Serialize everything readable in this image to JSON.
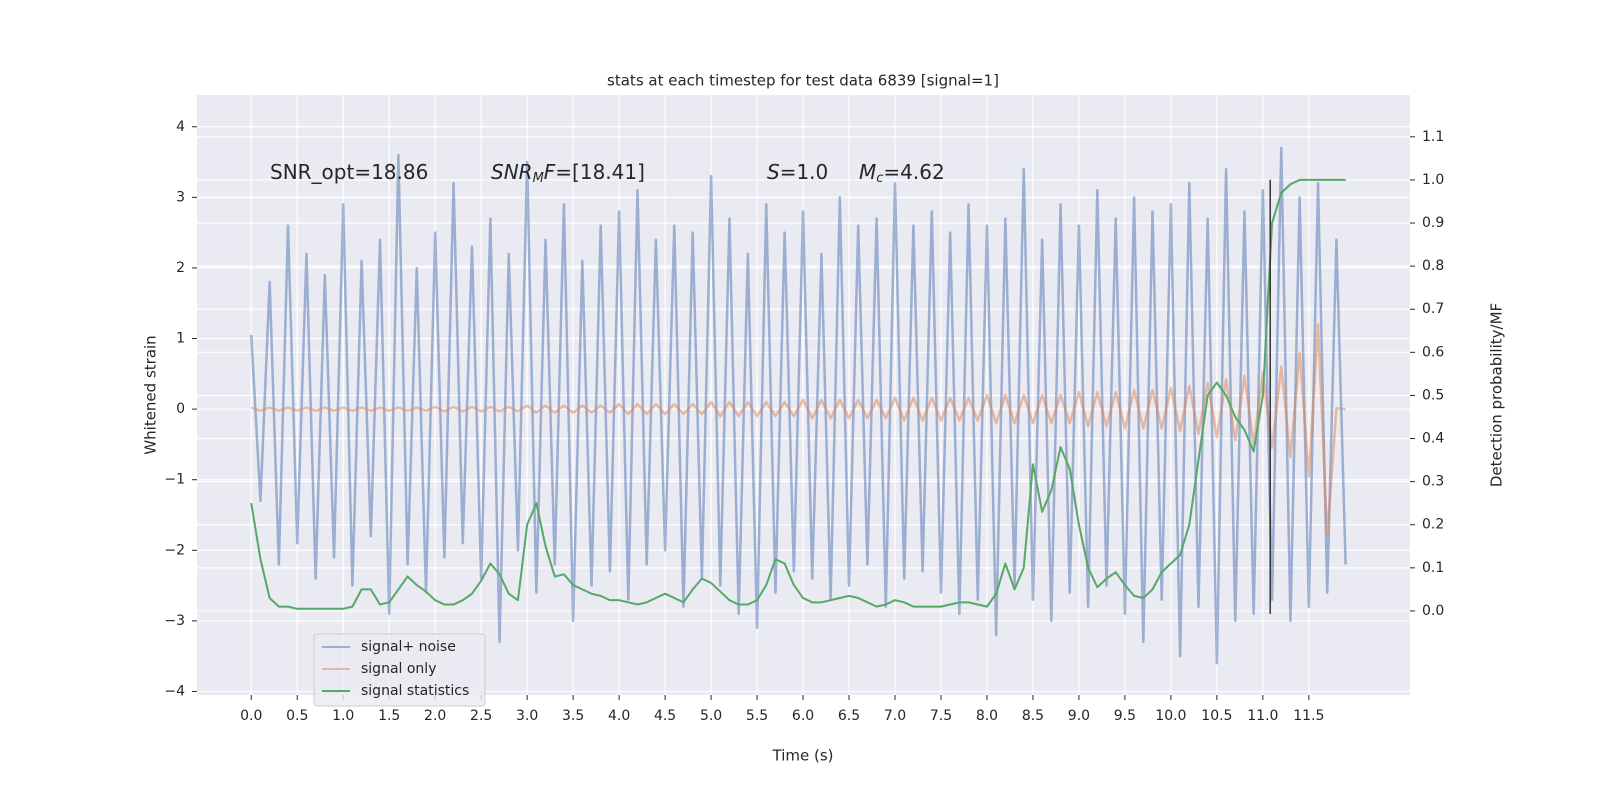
{
  "chart_data": {
    "type": "line",
    "title": "stats at each timestep for test data 6839 [signal=1]",
    "xlabel": "Time (s)",
    "ylabel": "Whitened strain",
    "y2label": "Detection probability/MF",
    "x": [
      0,
      0.1,
      0.2,
      0.3,
      0.4,
      0.5,
      0.6,
      0.7,
      0.8,
      0.9,
      1,
      1.1,
      1.2,
      1.3,
      1.4,
      1.5,
      1.6,
      1.7,
      1.8,
      1.9,
      2,
      2.1,
      2.2,
      2.3,
      2.4,
      2.5,
      2.6,
      2.7,
      2.8,
      2.9,
      3,
      3.1,
      3.2,
      3.3,
      3.4,
      3.5,
      3.6,
      3.7,
      3.8,
      3.9,
      4,
      4.1,
      4.2,
      4.3,
      4.4,
      4.5,
      4.6,
      4.7,
      4.8,
      4.9,
      5,
      5.1,
      5.2,
      5.3,
      5.4,
      5.5,
      5.6,
      5.7,
      5.8,
      5.9,
      6,
      6.1,
      6.2,
      6.3,
      6.4,
      6.5,
      6.6,
      6.7,
      6.8,
      6.9,
      7,
      7.1,
      7.2,
      7.3,
      7.4,
      7.5,
      7.6,
      7.7,
      7.8,
      7.9,
      8,
      8.1,
      8.2,
      8.3,
      8.4,
      8.5,
      8.6,
      8.7,
      8.8,
      8.9,
      9,
      9.1,
      9.2,
      9.3,
      9.4,
      9.5,
      9.6,
      9.7,
      9.8,
      9.9,
      10,
      10.1,
      10.2,
      10.3,
      10.4,
      10.5,
      10.6,
      10.7,
      10.8,
      10.9,
      11,
      11.1,
      11.2,
      11.3,
      11.4,
      11.5,
      11.6,
      11.7,
      11.8,
      11.9
    ],
    "series": [
      {
        "name": "signal+ noise",
        "color": "#4c72b0",
        "opacity": 0.5,
        "values": [
          1.05,
          -1.3,
          1.8,
          -2.2,
          2.6,
          -1.9,
          2.2,
          -2.4,
          1.9,
          -2.1,
          2.9,
          -2.5,
          2.1,
          -1.8,
          2.4,
          -2.9,
          3.6,
          -2.2,
          2.0,
          -2.6,
          2.5,
          -2.1,
          3.2,
          -1.9,
          2.3,
          -2.4,
          2.7,
          -3.3,
          2.2,
          -2.0,
          3.5,
          -2.6,
          2.4,
          -2.2,
          2.9,
          -3.0,
          2.1,
          -2.5,
          2.6,
          -2.3,
          2.8,
          -2.7,
          3.1,
          -2.2,
          2.4,
          -2.0,
          2.6,
          -2.8,
          2.5,
          -2.4,
          3.3,
          -2.5,
          2.7,
          -2.9,
          2.2,
          -3.1,
          2.9,
          -2.6,
          2.5,
          -2.3,
          2.8,
          -2.4,
          2.2,
          -2.7,
          3.0,
          -2.5,
          2.6,
          -2.2,
          2.7,
          -2.8,
          3.2,
          -2.4,
          2.6,
          -2.3,
          2.8,
          -2.6,
          2.5,
          -2.9,
          2.9,
          -2.7,
          2.6,
          -3.2,
          2.7,
          -2.5,
          3.4,
          -2.7,
          2.4,
          -3.0,
          2.9,
          -2.6,
          2.6,
          -2.8,
          3.1,
          -2.5,
          2.7,
          -2.9,
          3.0,
          -3.3,
          2.8,
          -2.7,
          2.9,
          -3.5,
          3.2,
          -2.8,
          2.7,
          -3.6,
          3.4,
          -3.0,
          2.8,
          -2.9,
          3.1,
          -2.7,
          3.7,
          -3.0,
          3.0,
          -2.8,
          3.2,
          -2.6,
          2.4,
          -2.2
        ]
      },
      {
        "name": "signal only",
        "color": "#dd8452",
        "opacity": 0.5,
        "values": [
          0.02,
          -0.02,
          0.02,
          -0.02,
          0.02,
          -0.02,
          0.02,
          -0.02,
          0.02,
          -0.02,
          0.02,
          -0.02,
          0.02,
          -0.02,
          0.02,
          -0.02,
          0.02,
          -0.02,
          0.02,
          -0.02,
          0.03,
          -0.03,
          0.03,
          -0.03,
          0.03,
          -0.03,
          0.03,
          -0.03,
          0.03,
          -0.03,
          0.05,
          -0.05,
          0.05,
          -0.05,
          0.05,
          -0.05,
          0.05,
          -0.05,
          0.05,
          -0.05,
          0.07,
          -0.07,
          0.07,
          -0.07,
          0.07,
          -0.07,
          0.07,
          -0.07,
          0.07,
          -0.07,
          0.1,
          -0.1,
          0.1,
          -0.1,
          0.1,
          -0.1,
          0.1,
          -0.1,
          0.1,
          -0.1,
          0.13,
          -0.13,
          0.13,
          -0.13,
          0.13,
          -0.13,
          0.13,
          -0.13,
          0.13,
          -0.13,
          0.16,
          -0.16,
          0.16,
          -0.16,
          0.16,
          -0.16,
          0.16,
          -0.16,
          0.16,
          -0.16,
          0.2,
          -0.2,
          0.2,
          -0.2,
          0.2,
          -0.2,
          0.2,
          -0.2,
          0.2,
          -0.2,
          0.24,
          -0.24,
          0.24,
          -0.24,
          0.24,
          -0.27,
          0.27,
          -0.27,
          0.27,
          -0.27,
          0.3,
          -0.31,
          0.33,
          -0.35,
          0.37,
          -0.4,
          0.42,
          -0.44,
          0.47,
          -0.5,
          0.52,
          -0.55,
          0.6,
          -0.68,
          0.8,
          -0.95,
          1.2,
          -1.8,
          0.01,
          0
        ]
      },
      {
        "name": "signal statistics",
        "color": "#55a868",
        "axis": "y2",
        "values": [
          0.25,
          0.12,
          0.03,
          0.01,
          0.01,
          0.005,
          0.005,
          0.005,
          0.005,
          0.005,
          0.005,
          0.01,
          0.05,
          0.05,
          0.015,
          0.02,
          0.05,
          0.08,
          0.06,
          0.045,
          0.025,
          0.015,
          0.015,
          0.025,
          0.04,
          0.07,
          0.11,
          0.085,
          0.04,
          0.025,
          0.2,
          0.25,
          0.15,
          0.08,
          0.085,
          0.06,
          0.05,
          0.04,
          0.035,
          0.025,
          0.025,
          0.02,
          0.015,
          0.02,
          0.03,
          0.04,
          0.03,
          0.02,
          0.05,
          0.075,
          0.065,
          0.045,
          0.025,
          0.015,
          0.015,
          0.025,
          0.06,
          0.12,
          0.11,
          0.06,
          0.03,
          0.02,
          0.02,
          0.025,
          0.03,
          0.035,
          0.03,
          0.02,
          0.01,
          0.015,
          0.025,
          0.02,
          0.01,
          0.01,
          0.01,
          0.01,
          0.015,
          0.02,
          0.02,
          0.015,
          0.01,
          0.04,
          0.11,
          0.05,
          0.1,
          0.34,
          0.23,
          0.28,
          0.38,
          0.33,
          0.2,
          0.1,
          0.055,
          0.075,
          0.09,
          0.06,
          0.035,
          0.03,
          0.05,
          0.09,
          0.11,
          0.13,
          0.2,
          0.35,
          0.5,
          0.53,
          0.5,
          0.45,
          0.42,
          0.37,
          0.5,
          0.9,
          0.97,
          0.99,
          1,
          1,
          1,
          1,
          1,
          1
        ]
      }
    ],
    "vline": {
      "x": 11.08,
      "ymin": -2.9,
      "ymax": 3.25,
      "color": "#333333"
    },
    "annotations": [
      [
        {
          "text": "SNR_opt=18.86",
          "style": "normal"
        }
      ],
      [
        {
          "text": "SNR",
          "style": "italic"
        },
        {
          "text": "M",
          "style": "sub"
        },
        {
          "text": "F",
          "style": "italic"
        },
        {
          "text": "=[18.41]",
          "style": "normal"
        }
      ],
      [
        {
          "text": "S",
          "style": "italic"
        },
        {
          "text": "=1.0",
          "style": "normal"
        }
      ],
      [
        {
          "text": "M",
          "style": "italic"
        },
        {
          "text": "c",
          "style": "sub"
        },
        {
          "text": "=4.62",
          "style": "normal"
        }
      ]
    ],
    "xlim": [
      -0.59,
      12.6
    ],
    "xticks": [
      {
        "value": 0,
        "label": "0.0"
      },
      0.5,
      {
        "value": 1,
        "label": "1.0"
      },
      1.5,
      {
        "value": 2,
        "label": "2.0"
      },
      2.5,
      {
        "value": 3,
        "label": "3.0"
      },
      3.5,
      {
        "value": 4,
        "label": "4.0"
      },
      4.5,
      {
        "value": 5,
        "label": "5.0"
      },
      5.5,
      {
        "value": 6,
        "label": "6.0"
      },
      6.5,
      {
        "value": 7,
        "label": "7.0"
      },
      7.5,
      {
        "value": 8,
        "label": "8.0"
      },
      8.5,
      {
        "value": 9,
        "label": "9.0"
      },
      9.5,
      {
        "value": 10,
        "label": "10.0"
      },
      10.5,
      {
        "value": 11,
        "label": "11.0"
      },
      11.5
    ],
    "ylim": [
      -4.05,
      4.45
    ],
    "yticks": [
      {
        "value": -4,
        "label": "−4"
      },
      {
        "value": -3,
        "label": "−3"
      },
      {
        "value": -2,
        "label": "−2"
      },
      {
        "value": -1,
        "label": "−1"
      },
      0,
      1,
      2,
      3,
      4
    ],
    "y2lim": [
      -0.195,
      1.197
    ],
    "y2ticks": [
      {
        "value": 0,
        "label": "0.0"
      },
      0.1,
      0.2,
      0.3,
      0.4,
      0.5,
      0.6,
      0.7,
      0.8,
      0.9,
      {
        "value": 1,
        "label": "1.0"
      },
      1.1
    ],
    "grid": true,
    "legend": "lower left"
  }
}
